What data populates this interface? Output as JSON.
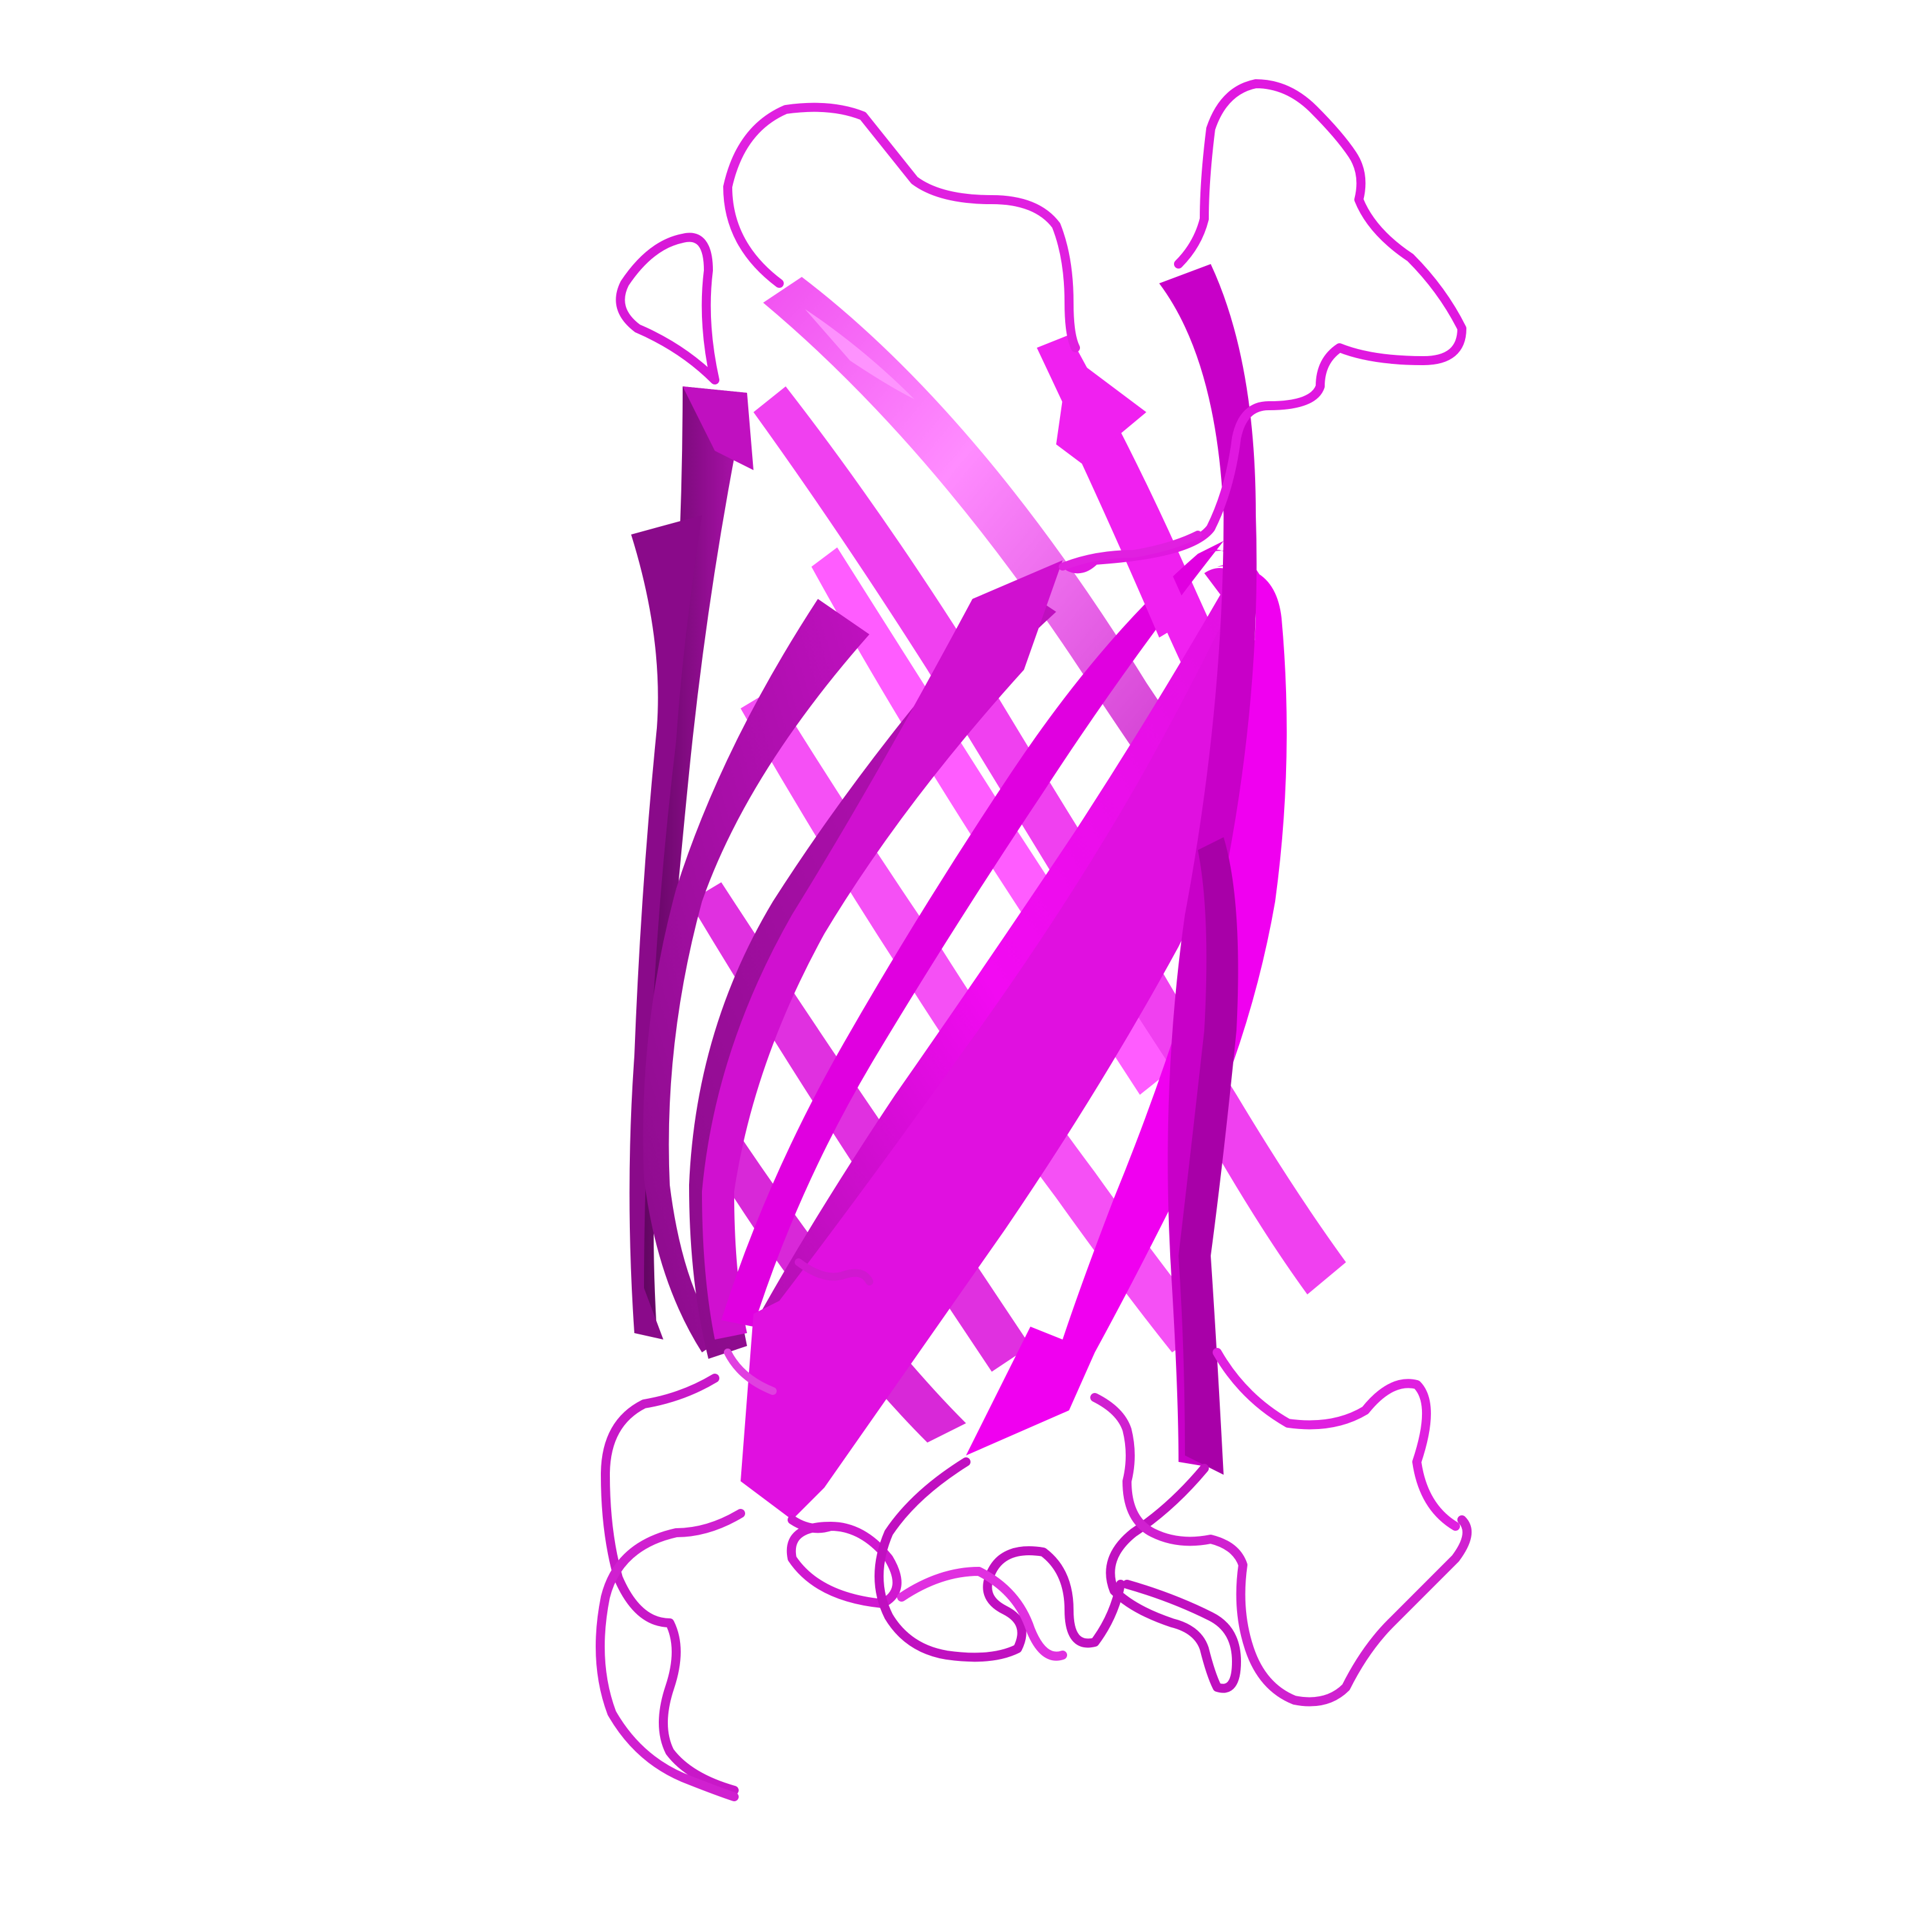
{
  "image": {
    "subject": "protein-cartoon-beta-barrel",
    "background_color": "#ffffff",
    "colors": {
      "strand_front": "#f20af2",
      "strand_mid": "#d01ad0",
      "strand_back": "#f54af5",
      "strand_shadow": "#7a0a7a",
      "strand_dark": "#8e0e8e",
      "loop": "#e020e0",
      "loop_shade": "#a010a0",
      "highlight": "#ff9cff"
    }
  }
}
